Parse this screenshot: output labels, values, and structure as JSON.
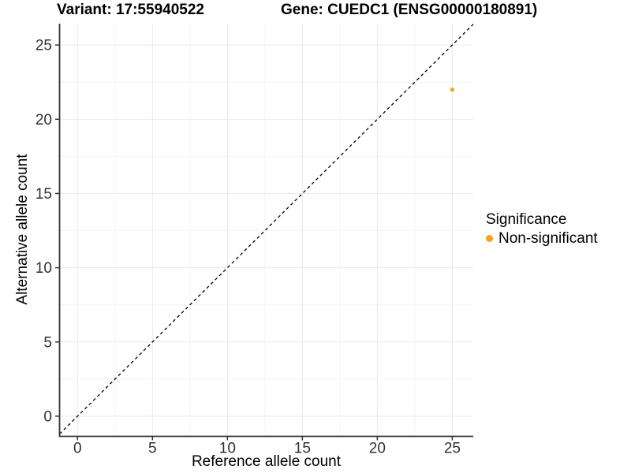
{
  "header": {
    "variant_title": "Variant: 17:55940522",
    "gene_title": "Gene: CUEDC1 (ENSG00000180891)"
  },
  "chart_data": {
    "type": "scatter",
    "xlabel": "Reference allele count",
    "ylabel": "Alternative allele count",
    "xlim": [
      -1.2,
      26.4
    ],
    "ylim": [
      -1.33,
      26.44
    ],
    "x_ticks": [
      0,
      5,
      10,
      15,
      20,
      25
    ],
    "y_ticks": [
      0,
      5,
      10,
      15,
      20,
      25
    ],
    "x_minor_ticks": [
      2.5,
      7.5,
      12.5,
      17.5,
      22.5
    ],
    "y_minor_ticks": [
      2.5,
      7.5,
      12.5,
      17.5,
      22.5
    ],
    "grid": true,
    "identity_line": {
      "equation": "y = x",
      "style": "dashed",
      "color": "#000000"
    },
    "series": [
      {
        "name": "Non-significant",
        "color": "#F9A01B",
        "points": [
          {
            "x": 25,
            "y": 22
          }
        ]
      }
    ],
    "legend": {
      "title": "Significance",
      "position": "right",
      "items": [
        {
          "label": "Non-significant",
          "color": "#F9A01B",
          "marker": "circle"
        }
      ]
    },
    "style": {
      "axis_color": "#333333",
      "tick_color": "#333333",
      "grid_major_color": "#E9E9E9",
      "grid_minor_color": "#F4F4F4",
      "tick_label_color": "#303030",
      "point_radius": 2.6,
      "legend_point_radius": 4.5
    }
  }
}
